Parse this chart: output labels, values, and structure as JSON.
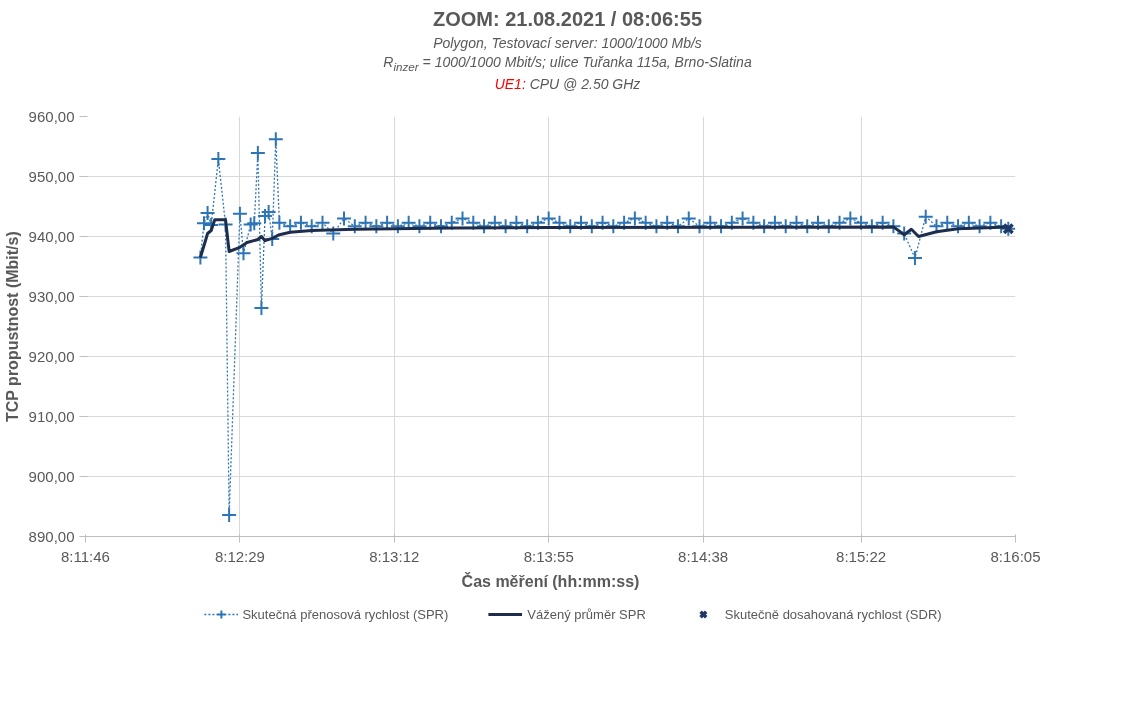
{
  "chart_data": {
    "type": "line",
    "title": "ZOOM: 21.08.2021 / 08:06:55",
    "subtitle": "Polygon, Testovací server: 1000/1000 Mb/s\nR$_{inzer}$ = 1000/1000 Mbit/s; ulice Tuřanka 115a, Brno-Slatina\nUE1: CPU @ 2.50 GHz",
    "xlabel": "Čas měření (hh:mm:ss)",
    "ylabel": "TCP propustnost (Mbit/s)",
    "xlim": [
      8.196111,
      8.268056
    ],
    "xticks": [
      {
        "value": 8.196111,
        "label": "8:11:46"
      },
      {
        "value": 8.208056,
        "label": "8:12:29"
      },
      {
        "value": 8.22,
        "label": "8:13:12"
      },
      {
        "value": 8.231944,
        "label": "8:13:55"
      },
      {
        "value": 8.243889,
        "label": "8:14:38"
      },
      {
        "value": 8.256111,
        "label": "8:15:22"
      },
      {
        "value": 8.268056,
        "label": "8:16:05"
      }
    ],
    "ylim": [
      890,
      960
    ],
    "yticks": [
      {
        "value": 890,
        "label": "890,00"
      },
      {
        "value": 900,
        "label": "900,00"
      },
      {
        "value": 910,
        "label": "910,00"
      },
      {
        "value": 920,
        "label": "920,00"
      },
      {
        "value": 930,
        "label": "930,00"
      },
      {
        "value": 940,
        "label": "940,00"
      },
      {
        "value": 950,
        "label": "950,00"
      },
      {
        "value": 960,
        "label": "960,00"
      }
    ],
    "grid": true,
    "legend": "bottom",
    "series": [
      {
        "name": "Skutečná přenosová rychlost (SPR)",
        "color": "#2e75b6",
        "marker": "cross",
        "line_style": "dotted",
        "x": [
          8.205,
          8.205278,
          8.205556,
          8.205833,
          8.206389,
          8.206944,
          8.207222,
          8.208056,
          8.208333,
          8.208889,
          8.209167,
          8.209444,
          8.209722,
          8.21,
          8.210278,
          8.210556,
          8.210833,
          8.211111,
          8.211944,
          8.212778,
          8.213611,
          8.214444,
          8.215278,
          8.216111,
          8.216944,
          8.217778,
          8.218611,
          8.219444,
          8.220278,
          8.221111,
          8.221944,
          8.222778,
          8.223611,
          8.224444,
          8.225278,
          8.226111,
          8.226944,
          8.227778,
          8.228611,
          8.229444,
          8.230278,
          8.231111,
          8.231944,
          8.232778,
          8.233611,
          8.234444,
          8.235278,
          8.236111,
          8.236944,
          8.237778,
          8.238611,
          8.239444,
          8.240278,
          8.241111,
          8.241944,
          8.242778,
          8.243611,
          8.244444,
          8.245278,
          8.246111,
          8.246944,
          8.247778,
          8.248611,
          8.249444,
          8.250278,
          8.251111,
          8.251944,
          8.252778,
          8.253611,
          8.254444,
          8.255278,
          8.256111,
          8.256944,
          8.257778,
          8.258611,
          8.259444,
          8.260278,
          8.261111,
          8.261944,
          8.262778,
          8.263611,
          8.264444,
          8.265278,
          8.266111,
          8.266944,
          8.2675
        ],
        "values": [
          936.5,
          942.2,
          943.9,
          941.9,
          952.9,
          942.0,
          893.6,
          943.8,
          937.2,
          942.0,
          942.2,
          953.9,
          928.1,
          943.4,
          944.1,
          939.6,
          956.2,
          942.3,
          941.7,
          942.3,
          941.7,
          942.3,
          940.5,
          943.0,
          941.7,
          942.3,
          941.7,
          942.3,
          941.7,
          942.3,
          941.7,
          942.3,
          941.7,
          942.3,
          943.0,
          942.3,
          941.7,
          942.3,
          941.7,
          942.3,
          941.7,
          942.3,
          943.0,
          942.3,
          941.7,
          942.3,
          941.7,
          942.3,
          941.7,
          942.3,
          943.0,
          942.3,
          941.7,
          942.3,
          941.7,
          943.0,
          941.7,
          942.3,
          941.7,
          942.3,
          943.0,
          942.3,
          941.7,
          942.3,
          941.7,
          942.3,
          941.7,
          942.3,
          941.7,
          942.3,
          943.0,
          942.3,
          941.7,
          942.3,
          941.7,
          940.5,
          936.4,
          943.3,
          941.7,
          942.3,
          941.7,
          942.3,
          941.7,
          942.3,
          941.7,
          941.3
        ]
      },
      {
        "name": "Vážený průměr SPR",
        "color": "#1f2d4d",
        "line_style": "solid",
        "x": [
          8.205,
          8.205556,
          8.205833,
          8.206111,
          8.206944,
          8.207222,
          8.208056,
          8.208611,
          8.209444,
          8.209722,
          8.21,
          8.210556,
          8.211111,
          8.211944,
          8.213611,
          8.216944,
          8.224444,
          8.231944,
          8.258611,
          8.259444,
          8.26,
          8.260556,
          8.261944,
          8.263611,
          8.2675
        ],
        "values": [
          936.5,
          940.5,
          941.0,
          942.8,
          942.8,
          937.5,
          938.2,
          939.0,
          939.5,
          940.0,
          939.3,
          939.7,
          940.3,
          940.7,
          941.0,
          941.2,
          941.4,
          941.5,
          941.6,
          940.3,
          941.2,
          940.0,
          940.8,
          941.3,
          941.6
        ]
      },
      {
        "name": "Skutečně dosahovaná rychlost (SDR)",
        "type": "scatter",
        "color": "#1f3864",
        "marker": "x",
        "x": [
          8.2675
        ],
        "values": [
          941.3
        ]
      }
    ]
  }
}
